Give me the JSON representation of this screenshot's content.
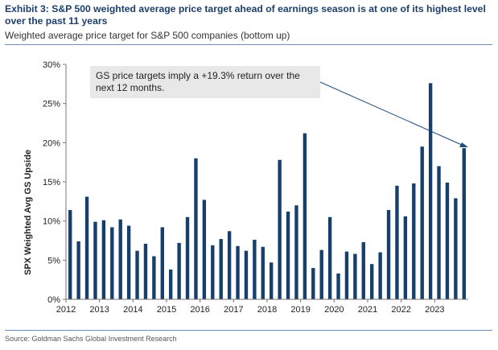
{
  "header": {
    "title": "Exhibit 3: S&P 500 weighted average price target ahead of earnings season is at one of its highest level over the past 11 years",
    "subtitle": "Weighted average price target for S&P 500 companies (bottom up)"
  },
  "footer": {
    "source": "Source: Goldman Sachs Global Investment Research"
  },
  "chart_data": {
    "type": "bar",
    "ylabel": "SPX Weighted Avg GS Upside",
    "ylim": [
      0,
      30
    ],
    "yticks": [
      0,
      5,
      10,
      15,
      20,
      25,
      30
    ],
    "ytick_labels": [
      "0%",
      "5%",
      "10%",
      "15%",
      "20%",
      "25%",
      "30%"
    ],
    "xticks": [
      2012,
      2013,
      2014,
      2015,
      2016,
      2017,
      2018,
      2019,
      2020,
      2021,
      2022,
      2023
    ],
    "xtick_labels": [
      "2012",
      "2013",
      "2014",
      "2015",
      "2016",
      "2017",
      "2018",
      "2019",
      "2020",
      "2021",
      "2022",
      "2023"
    ],
    "bar_color": "#163f6b",
    "grid": false,
    "values": [
      11.4,
      7.4,
      13.1,
      9.9,
      10.1,
      9.2,
      10.2,
      9.4,
      6.2,
      7.1,
      5.5,
      9.2,
      3.8,
      7.2,
      10.5,
      18.0,
      12.7,
      6.9,
      7.7,
      8.7,
      6.8,
      6.2,
      7.6,
      6.7,
      4.7,
      17.8,
      11.2,
      12.0,
      21.2,
      4.0,
      6.3,
      10.5,
      3.3,
      6.1,
      5.8,
      7.3,
      4.5,
      6.0,
      11.4,
      14.5,
      10.6,
      14.8,
      19.5,
      27.6,
      17.0,
      14.9,
      12.9,
      19.3
    ],
    "annotation": {
      "lines": [
        "GS price targets imply a +19.3% return over the",
        "next 12 months."
      ],
      "box_fill": "#e8e8e8"
    }
  }
}
